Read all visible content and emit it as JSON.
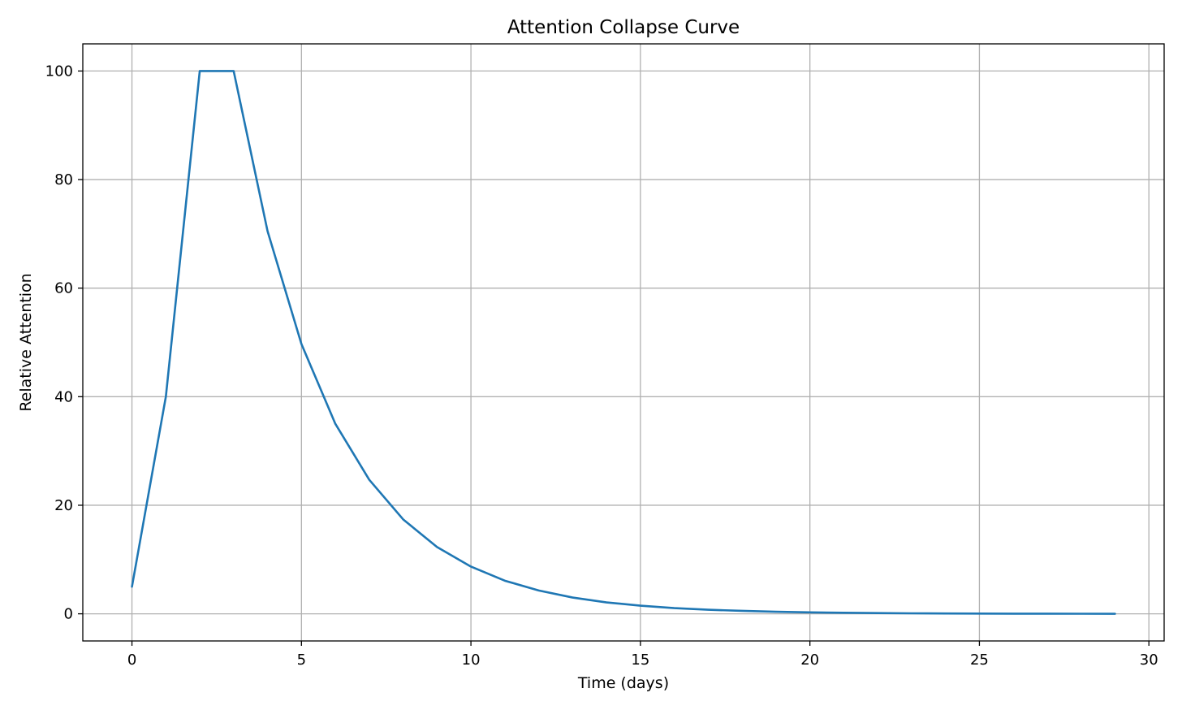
{
  "chart_data": {
    "type": "line",
    "title": "Attention Collapse Curve",
    "xlabel": "Time (days)",
    "ylabel": "Relative Attention",
    "xlim": [
      -1.45,
      30.45
    ],
    "ylim": [
      -5,
      105
    ],
    "xticks": [
      0,
      5,
      10,
      15,
      20,
      25,
      30
    ],
    "yticks": [
      0,
      20,
      40,
      60,
      80,
      100
    ],
    "grid": true,
    "legend": "none",
    "series": [
      {
        "color": "#1f77b4",
        "x": [
          0,
          1,
          2,
          3,
          4,
          5,
          6,
          7,
          8,
          9,
          10,
          11,
          12,
          13,
          14,
          15,
          16,
          17,
          18,
          19,
          20,
          21,
          22,
          23,
          24,
          25,
          26,
          27,
          28,
          29
        ],
        "y": [
          5,
          40,
          100,
          100,
          70.5,
          49.7,
          35,
          24.7,
          17.4,
          12.3,
          8.7,
          6.1,
          4.3,
          3.0,
          2.1,
          1.5,
          1.05,
          0.75,
          0.55,
          0.38,
          0.27,
          0.19,
          0.13,
          0.09,
          0.06,
          0.04,
          0.03,
          0.02,
          0.015,
          0.01
        ]
      }
    ]
  }
}
